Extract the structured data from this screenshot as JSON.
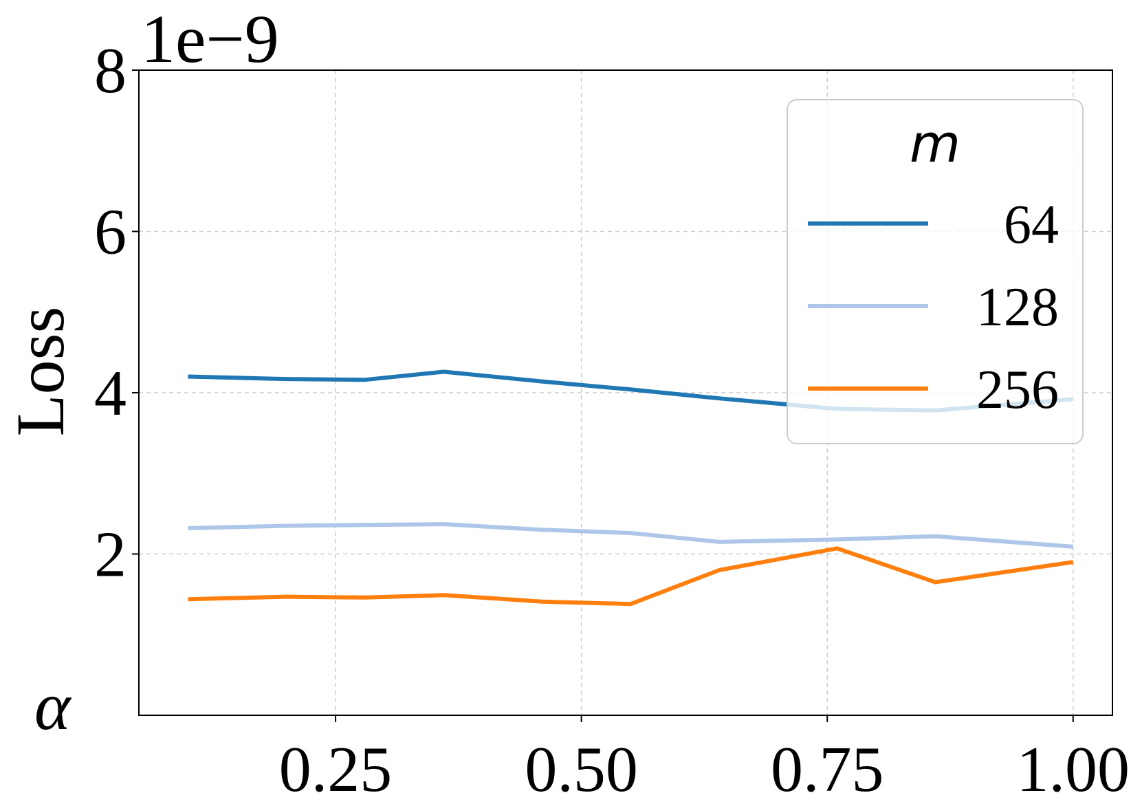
{
  "chart_data": {
    "type": "line",
    "xlabel": "α",
    "ylabel": "Loss",
    "y_offset_label": "1e−9",
    "xlim": [
      0.05,
      1.04
    ],
    "ylim": [
      0.0,
      8.0
    ],
    "x_ticks": [
      0.25,
      0.5,
      0.75,
      1.0
    ],
    "x_tick_labels": [
      "0.25",
      "0.50",
      "0.75",
      "1.00"
    ],
    "y_ticks": [
      2,
      4,
      6,
      8
    ],
    "y_tick_labels": [
      "2",
      "4",
      "6",
      "8"
    ],
    "grid": true,
    "legend_title": "m",
    "legend_position": "top-right",
    "series": [
      {
        "name": "64",
        "color": "#1f77b4",
        "x": [
          0.1,
          0.2,
          0.28,
          0.36,
          0.46,
          0.55,
          0.64,
          0.76,
          0.86,
          1.0
        ],
        "y": [
          4.2,
          4.17,
          4.16,
          4.26,
          4.14,
          4.04,
          3.93,
          3.8,
          3.78,
          3.92
        ]
      },
      {
        "name": "128",
        "color": "#aec7e8",
        "x": [
          0.1,
          0.2,
          0.28,
          0.36,
          0.46,
          0.55,
          0.64,
          0.76,
          0.86,
          1.0
        ],
        "y": [
          2.32,
          2.35,
          2.36,
          2.37,
          2.3,
          2.26,
          2.15,
          2.18,
          2.22,
          2.09
        ]
      },
      {
        "name": "256",
        "color": "#ff7f0e",
        "x": [
          0.1,
          0.2,
          0.28,
          0.36,
          0.46,
          0.55,
          0.64,
          0.76,
          0.86,
          1.0
        ],
        "y": [
          1.44,
          1.47,
          1.46,
          1.49,
          1.41,
          1.38,
          1.8,
          2.07,
          1.65,
          1.9
        ]
      }
    ]
  }
}
